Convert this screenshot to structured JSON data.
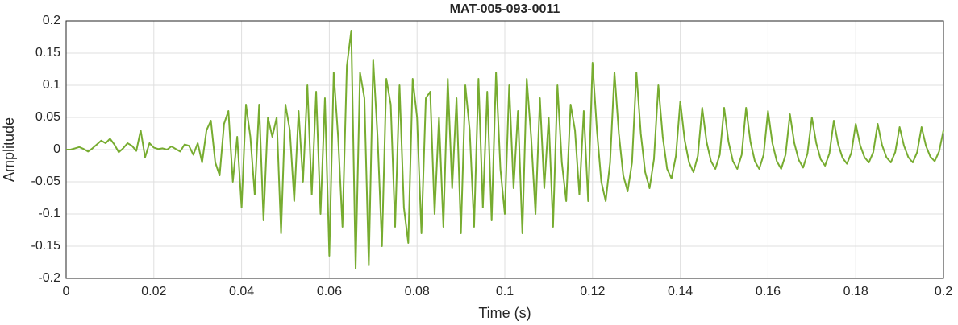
{
  "chart_data": {
    "type": "line",
    "title": "MAT-005-093-0011",
    "xlabel": "Time (s)",
    "ylabel": "Amplitude",
    "color": "#77ac30",
    "grid": true,
    "xlim": [
      0,
      0.2
    ],
    "ylim": [
      -0.2,
      0.2
    ],
    "xticks": [
      0,
      0.02,
      0.04,
      0.06,
      0.08,
      0.1,
      0.12,
      0.14,
      0.16,
      0.18,
      0.2
    ],
    "yticks": [
      -0.2,
      -0.15,
      -0.1,
      -0.05,
      0,
      0.05,
      0.1,
      0.15,
      0.2
    ],
    "x": [
      0,
      0.001,
      0.002,
      0.003,
      0.004,
      0.005,
      0.006,
      0.007,
      0.008,
      0.009,
      0.01,
      0.011,
      0.012,
      0.013,
      0.014,
      0.015,
      0.016,
      0.017,
      0.018,
      0.019,
      0.02,
      0.021,
      0.022,
      0.023,
      0.024,
      0.025,
      0.026,
      0.027,
      0.028,
      0.029,
      0.03,
      0.031,
      0.032,
      0.033,
      0.034,
      0.035,
      0.036,
      0.037,
      0.038,
      0.039,
      0.04,
      0.041,
      0.042,
      0.043,
      0.044,
      0.045,
      0.046,
      0.047,
      0.048,
      0.049,
      0.05,
      0.051,
      0.052,
      0.053,
      0.054,
      0.055,
      0.056,
      0.057,
      0.058,
      0.059,
      0.06,
      0.061,
      0.062,
      0.063,
      0.064,
      0.065,
      0.066,
      0.067,
      0.068,
      0.069,
      0.07,
      0.071,
      0.072,
      0.073,
      0.074,
      0.075,
      0.076,
      0.077,
      0.078,
      0.079,
      0.08,
      0.081,
      0.082,
      0.083,
      0.084,
      0.085,
      0.086,
      0.087,
      0.088,
      0.089,
      0.09,
      0.091,
      0.092,
      0.093,
      0.094,
      0.095,
      0.096,
      0.097,
      0.098,
      0.099,
      0.1,
      0.101,
      0.102,
      0.103,
      0.104,
      0.105,
      0.106,
      0.107,
      0.108,
      0.109,
      0.11,
      0.111,
      0.112,
      0.113,
      0.114,
      0.115,
      0.116,
      0.117,
      0.118,
      0.119,
      0.12,
      0.121,
      0.122,
      0.123,
      0.124,
      0.125,
      0.126,
      0.127,
      0.128,
      0.129,
      0.13,
      0.131,
      0.132,
      0.133,
      0.134,
      0.135,
      0.136,
      0.137,
      0.138,
      0.139,
      0.14,
      0.141,
      0.142,
      0.143,
      0.144,
      0.145,
      0.146,
      0.147,
      0.148,
      0.149,
      0.15,
      0.151,
      0.152,
      0.153,
      0.154,
      0.155,
      0.156,
      0.157,
      0.158,
      0.159,
      0.16,
      0.161,
      0.162,
      0.163,
      0.164,
      0.165,
      0.166,
      0.167,
      0.168,
      0.169,
      0.17,
      0.171,
      0.172,
      0.173,
      0.174,
      0.175,
      0.176,
      0.177,
      0.178,
      0.179,
      0.18,
      0.181,
      0.182,
      0.183,
      0.184,
      0.185,
      0.186,
      0.187,
      0.188,
      0.189,
      0.19,
      0.191,
      0.192,
      0.193,
      0.194,
      0.195,
      0.196,
      0.197,
      0.198,
      0.199,
      0.2
    ],
    "values": [
      0,
      0,
      0.002,
      0.004,
      0.001,
      -0.003,
      0.002,
      0.008,
      0.014,
      0.01,
      0.017,
      0.008,
      -0.004,
      0.002,
      0.01,
      0.006,
      -0.002,
      0.03,
      -0.012,
      0.01,
      0.003,
      0.001,
      0.002,
      0,
      0.005,
      0.001,
      -0.003,
      0.008,
      0.006,
      -0.008,
      0.01,
      -0.02,
      0.03,
      0.045,
      -0.02,
      -0.04,
      0.04,
      0.06,
      -0.05,
      0.02,
      -0.09,
      0.07,
      0.02,
      -0.07,
      0.07,
      -0.11,
      0.05,
      0.02,
      0.05,
      -0.13,
      0.07,
      0.03,
      -0.08,
      0.06,
      -0.05,
      0.1,
      -0.07,
      0.09,
      -0.1,
      0.08,
      -0.165,
      0.12,
      0.02,
      -0.12,
      0.13,
      0.185,
      -0.185,
      0.12,
      0.08,
      -0.18,
      0.14,
      0.02,
      -0.15,
      0.11,
      0.07,
      -0.12,
      0.1,
      -0.09,
      -0.145,
      0.11,
      0.05,
      -0.13,
      0.08,
      0.09,
      -0.1,
      0.05,
      -0.12,
      0.11,
      -0.06,
      0.08,
      -0.13,
      0.1,
      0.03,
      -0.12,
      0.11,
      -0.09,
      0.09,
      -0.11,
      0.12,
      -0.03,
      -0.1,
      0.1,
      -0.06,
      0.06,
      -0.13,
      0.11,
      0.02,
      -0.1,
      0.08,
      -0.06,
      0.05,
      -0.12,
      0.1,
      -0.02,
      -0.08,
      0.07,
      0.03,
      -0.07,
      0.06,
      -0.08,
      0.135,
      0.03,
      -0.05,
      -0.08,
      -0.02,
      0.12,
      0.025,
      -0.04,
      -0.065,
      -0.02,
      0.12,
      0.025,
      -0.035,
      -0.06,
      -0.015,
      0.1,
      0.02,
      -0.03,
      -0.045,
      -0.01,
      0.075,
      0.015,
      -0.02,
      -0.035,
      -0.01,
      0.065,
      0.012,
      -0.018,
      -0.03,
      -0.008,
      0.065,
      0.012,
      -0.018,
      -0.03,
      -0.008,
      0.065,
      0.012,
      -0.018,
      -0.03,
      -0.008,
      0.06,
      0.01,
      -0.018,
      -0.03,
      -0.008,
      0.055,
      0.01,
      -0.016,
      -0.028,
      -0.006,
      0.05,
      0.01,
      -0.015,
      -0.025,
      -0.006,
      0.045,
      0.008,
      -0.013,
      -0.022,
      -0.005,
      0.04,
      0.007,
      -0.012,
      -0.02,
      -0.004,
      0.04,
      0.007,
      -0.012,
      -0.02,
      -0.004,
      0.035,
      0.006,
      -0.012,
      -0.02,
      -0.004,
      0.035,
      0.006,
      -0.011,
      -0.018,
      -0.003,
      0.03
    ]
  }
}
